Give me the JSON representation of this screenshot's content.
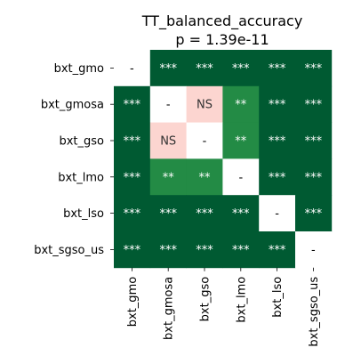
{
  "chart_data": {
    "type": "heatmap",
    "title": "TT_balanced_accuracy",
    "subtitle": "p = 1.39e-11",
    "row_labels": [
      "bxt_gmo",
      "bxt_gmosa",
      "bxt_gso",
      "bxt_lmo",
      "bxt_lso",
      "bxt_sgso_us"
    ],
    "col_labels": [
      "bxt_gmo",
      "bxt_gmosa",
      "bxt_gso",
      "bxt_lmo",
      "bxt_lso",
      "bxt_sgso_us"
    ],
    "cells": [
      [
        "-",
        "***",
        "***",
        "***",
        "***",
        "***"
      ],
      [
        "***",
        "-",
        "NS",
        "**",
        "***",
        "***"
      ],
      [
        "***",
        "NS",
        "-",
        "**",
        "***",
        "***"
      ],
      [
        "***",
        "**",
        "**",
        "-",
        "***",
        "***"
      ],
      [
        "***",
        "***",
        "***",
        "***",
        "-",
        "***"
      ],
      [
        "***",
        "***",
        "***",
        "***",
        "***",
        "-"
      ]
    ],
    "colors": {
      "***": "#005a32",
      "**": "#238b45",
      "NS": "#fcd5d0",
      "-": "#ffffff"
    },
    "text_colors": {
      "***": "#ffffff",
      "**": "#ffffff",
      "NS": "#333333",
      "-": "#000000"
    }
  }
}
